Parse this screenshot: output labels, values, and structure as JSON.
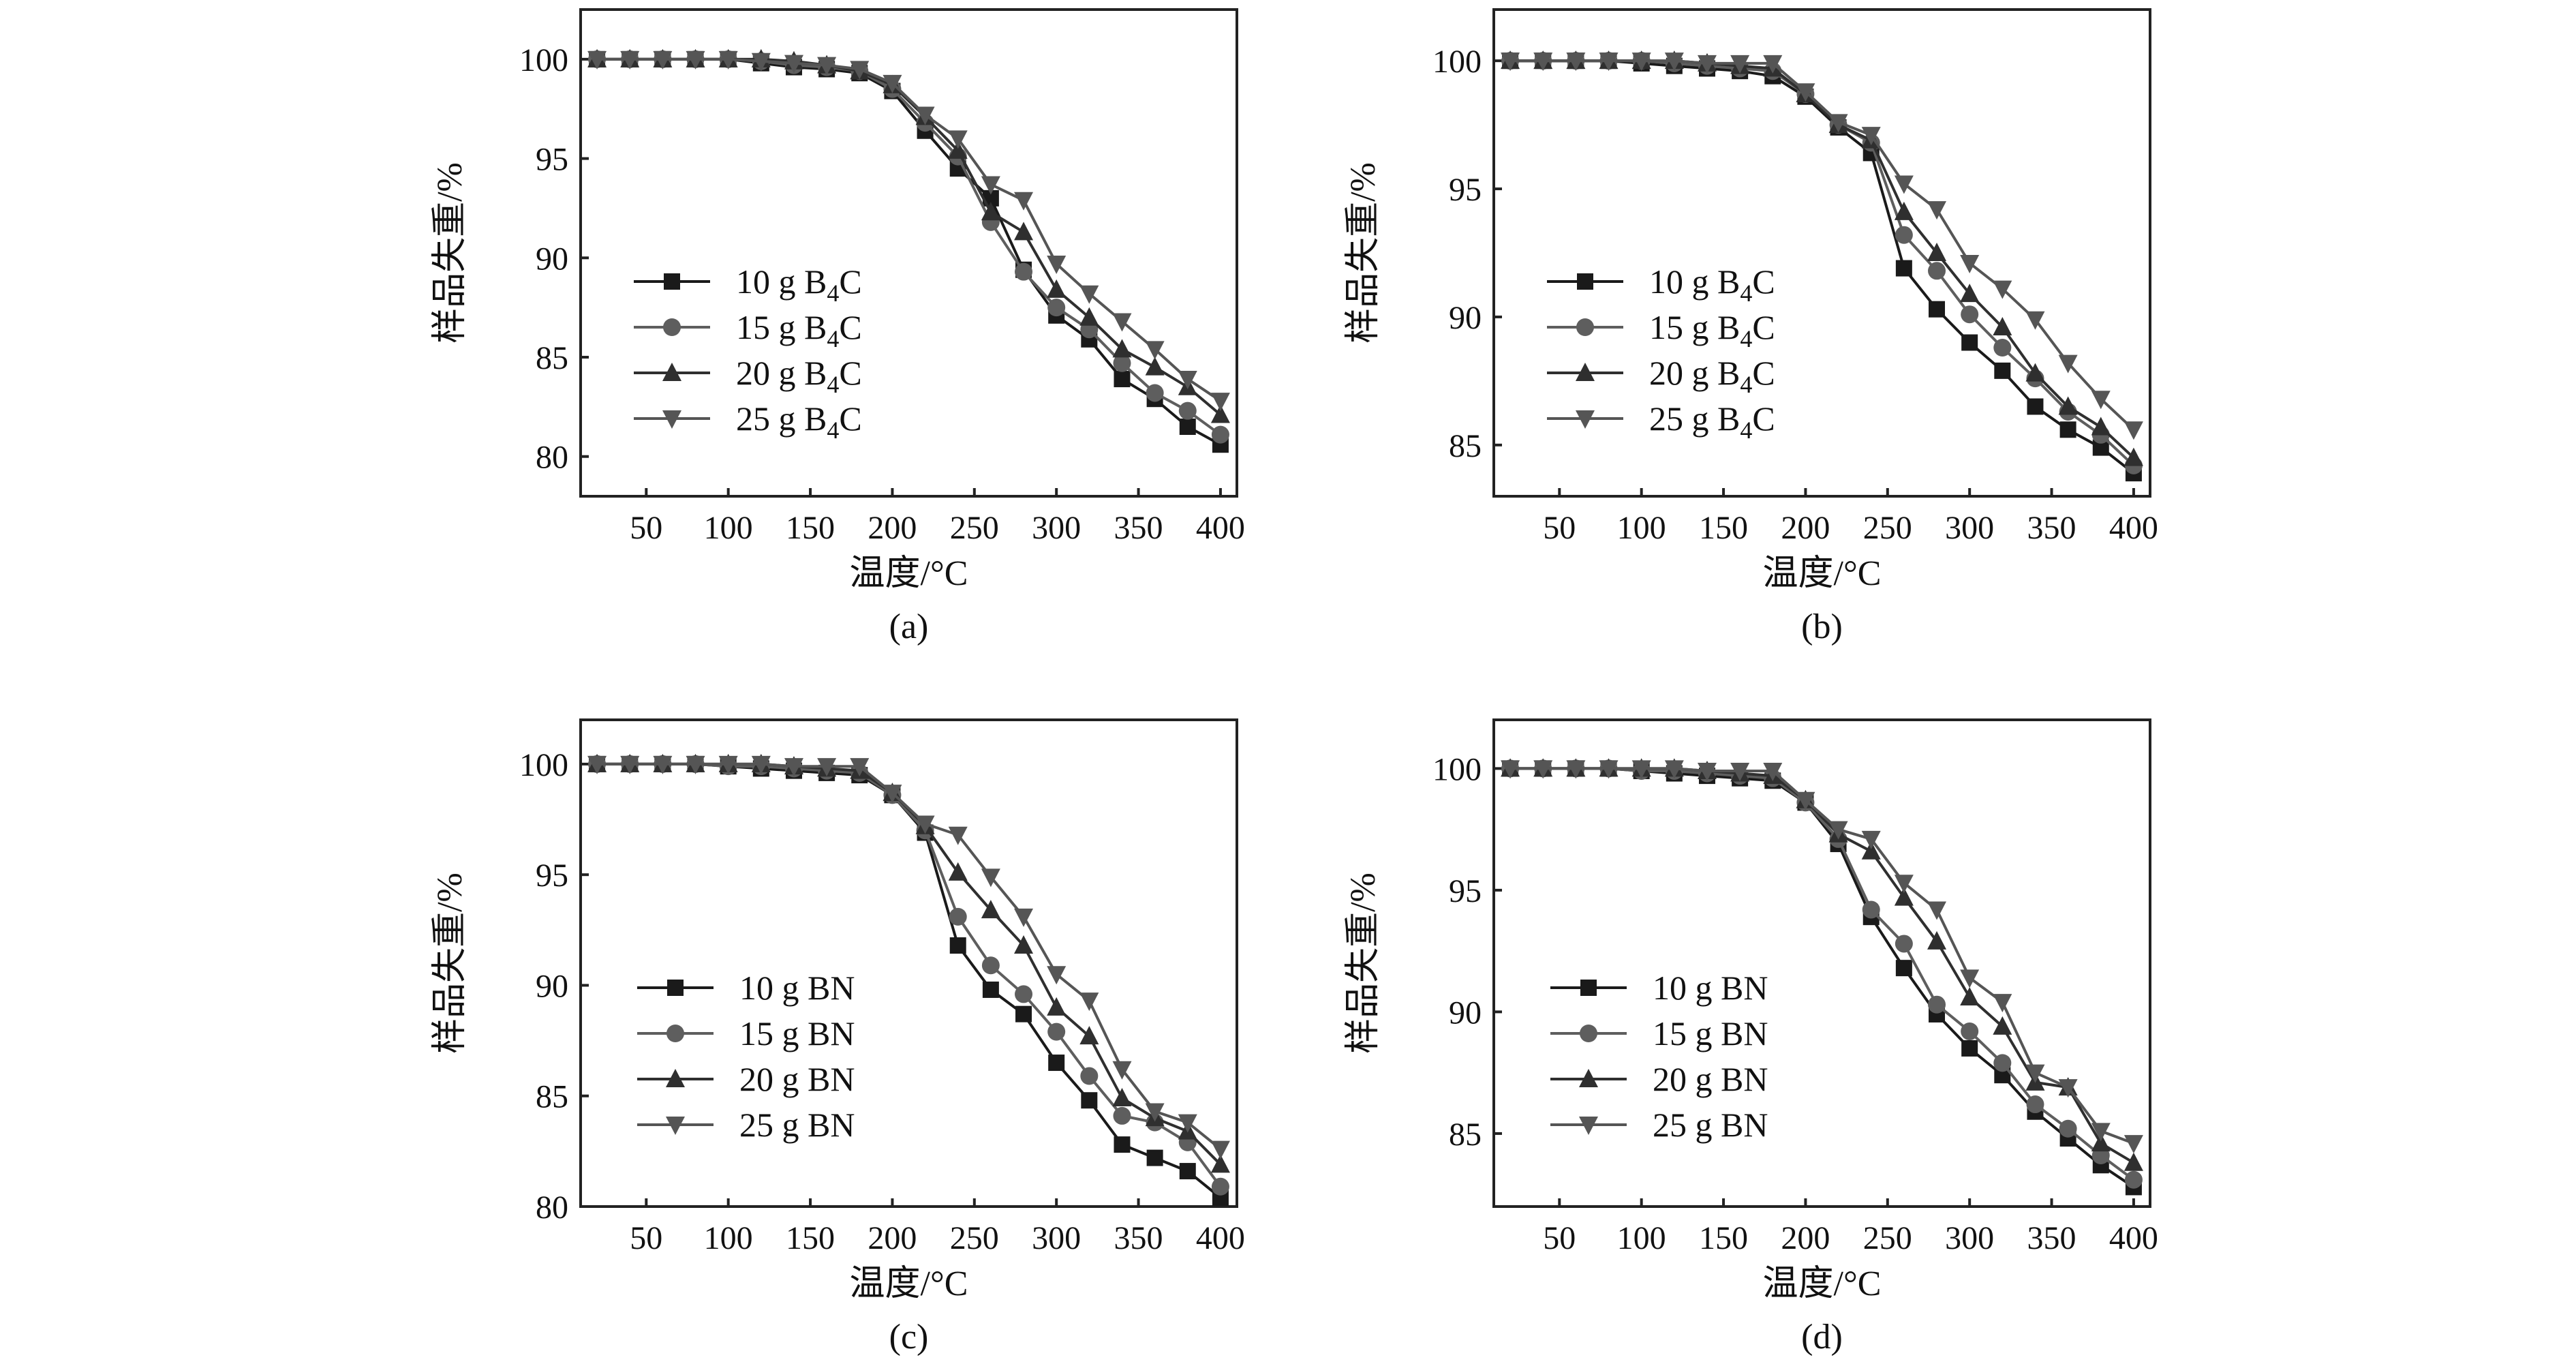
{
  "figure": {
    "series_colors": [
      "#1a1a1a",
      "#5e5e5e",
      "#2f2f2f",
      "#555555"
    ],
    "marker_shapes": [
      "square",
      "circle",
      "triangle-up",
      "triangle-down"
    ]
  },
  "chart_data": [
    {
      "panel": "(a)",
      "type": "line",
      "xlabel": "温度/°C",
      "ylabel": "样品失重/%",
      "xlim": [
        10,
        410
      ],
      "ylim": [
        78,
        102.5
      ],
      "xticks": [
        50,
        100,
        150,
        200,
        250,
        300,
        350,
        400
      ],
      "yticks": [
        80,
        85,
        90,
        95,
        100
      ],
      "legend_position": "left",
      "x": [
        20,
        40,
        60,
        80,
        100,
        120,
        140,
        160,
        180,
        200,
        220,
        240,
        260,
        280,
        300,
        320,
        340,
        360,
        380,
        400
      ],
      "series": [
        {
          "name": "10 g B4C",
          "label_main": "10 g B",
          "label_sub": "4",
          "label_tail": "C",
          "values": [
            100,
            100,
            100,
            100,
            100,
            99.8,
            99.6,
            99.5,
            99.3,
            98.4,
            96.4,
            94.5,
            93.0,
            89.4,
            87.1,
            85.9,
            83.9,
            82.9,
            81.5,
            80.6
          ]
        },
        {
          "name": "15 g B4C",
          "label_main": "15 g B",
          "label_sub": "4",
          "label_tail": "C",
          "values": [
            100,
            100,
            100,
            100,
            100,
            99.9,
            99.7,
            99.6,
            99.4,
            98.5,
            96.8,
            95.1,
            91.8,
            89.3,
            87.5,
            86.4,
            84.7,
            83.2,
            82.3,
            81.1
          ]
        },
        {
          "name": "20 g B4C",
          "label_main": "20 g B",
          "label_sub": "4",
          "label_tail": "C",
          "values": [
            100,
            100,
            100,
            100,
            100,
            100,
            99.9,
            99.7,
            99.4,
            98.7,
            97.1,
            95.4,
            92.3,
            91.3,
            88.4,
            87.0,
            85.4,
            84.5,
            83.5,
            82.1
          ]
        },
        {
          "name": "25 g B4C",
          "label_main": "25 g B",
          "label_sub": "4",
          "label_tail": "C",
          "values": [
            100,
            100,
            100,
            100,
            100,
            99.9,
            99.8,
            99.7,
            99.5,
            98.8,
            97.2,
            96.0,
            93.7,
            92.9,
            89.7,
            88.2,
            86.8,
            85.4,
            83.9,
            82.8
          ]
        }
      ]
    },
    {
      "panel": "(b)",
      "type": "line",
      "xlabel": "温度/°C",
      "ylabel": "样品失重/%",
      "xlim": [
        10,
        410
      ],
      "ylim": [
        83,
        102
      ],
      "xticks": [
        50,
        100,
        150,
        200,
        250,
        300,
        350,
        400
      ],
      "yticks": [
        85,
        90,
        95,
        100
      ],
      "legend_position": "left",
      "x": [
        20,
        40,
        60,
        80,
        100,
        120,
        140,
        160,
        180,
        200,
        220,
        240,
        260,
        280,
        300,
        320,
        340,
        360,
        380,
        400
      ],
      "series": [
        {
          "name": "10 g B4C",
          "label_main": "10 g B",
          "label_sub": "4",
          "label_tail": "C",
          "values": [
            100,
            100,
            100,
            100,
            99.9,
            99.8,
            99.7,
            99.6,
            99.4,
            98.6,
            97.4,
            96.4,
            91.9,
            90.3,
            89.0,
            87.9,
            86.5,
            85.6,
            84.9,
            83.9
          ]
        },
        {
          "name": "15 g B4C",
          "label_main": "15 g B",
          "label_sub": "4",
          "label_tail": "C",
          "values": [
            100,
            100,
            100,
            100,
            100,
            99.9,
            99.8,
            99.7,
            99.6,
            98.7,
            97.5,
            96.8,
            93.2,
            91.8,
            90.1,
            88.8,
            87.6,
            86.3,
            85.4,
            84.2
          ]
        },
        {
          "name": "20 g B4C",
          "label_main": "20 g B",
          "label_sub": "4",
          "label_tail": "C",
          "values": [
            100,
            100,
            100,
            100,
            100,
            100,
            99.9,
            99.8,
            99.7,
            98.7,
            97.5,
            96.9,
            94.1,
            92.5,
            90.9,
            89.6,
            87.8,
            86.5,
            85.7,
            84.5
          ]
        },
        {
          "name": "25 g B4C",
          "label_main": "25 g B",
          "label_sub": "4",
          "label_tail": "C",
          "values": [
            100,
            100,
            100,
            100,
            100,
            100,
            99.9,
            99.9,
            99.9,
            98.8,
            97.6,
            97.1,
            95.2,
            94.2,
            92.1,
            91.1,
            89.9,
            88.2,
            86.8,
            85.6
          ]
        }
      ]
    },
    {
      "panel": "(c)",
      "type": "line",
      "xlabel": "温度/°C",
      "ylabel": "样品失重/%",
      "xlim": [
        10,
        410
      ],
      "ylim": [
        80,
        102
      ],
      "xticks": [
        50,
        100,
        150,
        200,
        250,
        300,
        350,
        400
      ],
      "yticks": [
        80,
        85,
        90,
        95,
        100
      ],
      "legend_position": "left",
      "x": [
        20,
        40,
        60,
        80,
        100,
        120,
        140,
        160,
        180,
        200,
        220,
        240,
        260,
        280,
        300,
        320,
        340,
        360,
        380,
        400
      ],
      "series": [
        {
          "name": "10 g BN",
          "label_main": "10 g BN",
          "label_sub": "",
          "label_tail": "",
          "values": [
            100,
            100,
            100,
            100,
            99.9,
            99.8,
            99.7,
            99.6,
            99.5,
            98.6,
            96.9,
            91.8,
            89.8,
            88.7,
            86.5,
            84.8,
            82.8,
            82.2,
            81.6,
            80.4
          ]
        },
        {
          "name": "15 g BN",
          "label_main": "15 g BN",
          "label_sub": "",
          "label_tail": "",
          "values": [
            100,
            100,
            100,
            100,
            99.9,
            99.9,
            99.8,
            99.7,
            99.6,
            98.6,
            97.0,
            93.1,
            90.9,
            89.6,
            87.9,
            85.9,
            84.1,
            83.8,
            82.9,
            80.9
          ]
        },
        {
          "name": "20 g BN",
          "label_main": "20 g BN",
          "label_sub": "",
          "label_tail": "",
          "values": [
            100,
            100,
            100,
            100,
            100,
            100,
            99.9,
            99.8,
            99.7,
            98.7,
            97.2,
            95.1,
            93.4,
            91.8,
            89.0,
            87.7,
            84.9,
            84.0,
            83.4,
            81.9
          ]
        },
        {
          "name": "25 g BN",
          "label_main": "25 g BN",
          "label_sub": "",
          "label_tail": "",
          "values": [
            100,
            100,
            100,
            100,
            100,
            100,
            99.9,
            99.9,
            99.9,
            98.7,
            97.3,
            96.8,
            94.9,
            93.1,
            90.5,
            89.3,
            86.2,
            84.3,
            83.8,
            82.6
          ]
        }
      ]
    },
    {
      "panel": "(d)",
      "type": "line",
      "xlabel": "温度/°C",
      "ylabel": "样品失重/%",
      "xlim": [
        10,
        410
      ],
      "ylim": [
        82,
        102
      ],
      "xticks": [
        50,
        100,
        150,
        200,
        250,
        300,
        350,
        400
      ],
      "yticks": [
        85,
        90,
        95,
        100
      ],
      "legend_position": "left",
      "x": [
        20,
        40,
        60,
        80,
        100,
        120,
        140,
        160,
        180,
        200,
        220,
        240,
        260,
        280,
        300,
        320,
        340,
        360,
        380,
        400
      ],
      "series": [
        {
          "name": "10 g BN",
          "label_main": "10 g BN",
          "label_sub": "",
          "label_tail": "",
          "values": [
            100,
            100,
            100,
            100,
            99.9,
            99.8,
            99.7,
            99.6,
            99.5,
            98.6,
            96.9,
            93.9,
            91.8,
            89.9,
            88.5,
            87.4,
            85.9,
            84.8,
            83.7,
            82.8
          ]
        },
        {
          "name": "15 g BN",
          "label_main": "15 g BN",
          "label_sub": "",
          "label_tail": "",
          "values": [
            100,
            100,
            100,
            100,
            99.9,
            99.9,
            99.8,
            99.7,
            99.6,
            98.6,
            97.1,
            94.2,
            92.8,
            90.3,
            89.2,
            87.9,
            86.2,
            85.2,
            84.1,
            83.1
          ]
        },
        {
          "name": "20 g BN",
          "label_main": "20 g BN",
          "label_sub": "",
          "label_tail": "",
          "values": [
            100,
            100,
            100,
            100,
            100,
            100,
            99.9,
            99.8,
            99.7,
            98.7,
            97.3,
            96.6,
            94.7,
            92.9,
            90.6,
            89.4,
            87.1,
            86.9,
            84.6,
            83.8
          ]
        },
        {
          "name": "25 g BN",
          "label_main": "25 g BN",
          "label_sub": "",
          "label_tail": "",
          "values": [
            100,
            100,
            100,
            100,
            100,
            100,
            99.9,
            99.9,
            99.9,
            98.7,
            97.5,
            97.1,
            95.3,
            94.2,
            91.4,
            90.4,
            87.5,
            86.9,
            85.1,
            84.6
          ]
        }
      ]
    }
  ]
}
